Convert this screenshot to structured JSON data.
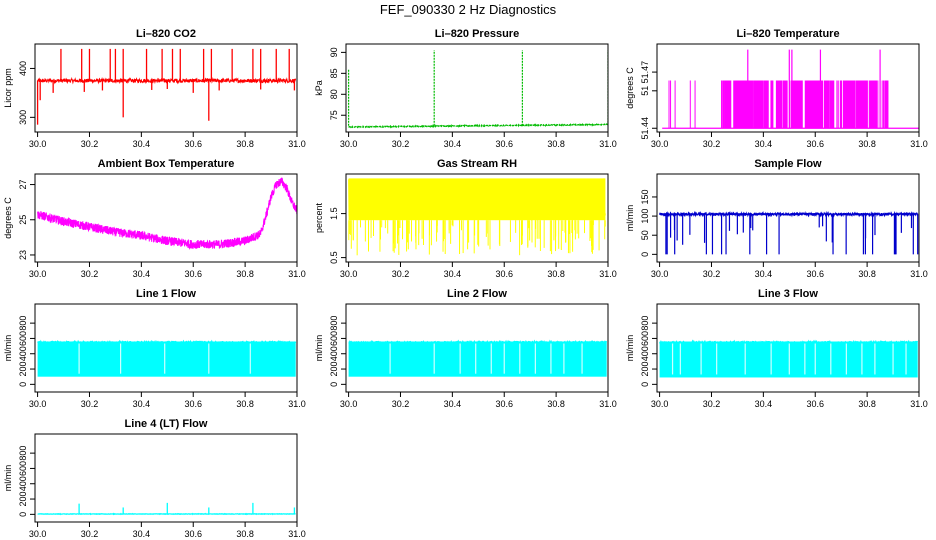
{
  "figure": {
    "title": "FEF_090330  2 Hz Diagnostics"
  },
  "chart_data": [
    {
      "type": "line",
      "title": "Li–820 CO2",
      "ylabel": "Licor ppm",
      "color": "#ff0000",
      "xlim": [
        29.99,
        31.0
      ],
      "ylim": [
        270,
        450
      ],
      "xticks": [
        30.0,
        30.2,
        30.4,
        30.6,
        30.8,
        31.0
      ],
      "xtick_labels": [
        "30.0",
        "30.2",
        "30.4",
        "30.6",
        "30.8",
        "31.0"
      ],
      "yticks": [
        300,
        400
      ],
      "ytick_labels": [
        "300",
        "400"
      ],
      "baseline": 375,
      "noise": 4,
      "spikes": [
        [
          30.09,
          440
        ],
        [
          30.17,
          440
        ],
        [
          30.2,
          440
        ],
        [
          30.28,
          440
        ],
        [
          30.3,
          440
        ],
        [
          30.33,
          440
        ],
        [
          30.42,
          440
        ],
        [
          30.48,
          440
        ],
        [
          30.52,
          440
        ],
        [
          30.55,
          440
        ],
        [
          30.64,
          440
        ],
        [
          30.67,
          440
        ],
        [
          30.75,
          440
        ],
        [
          30.83,
          440
        ],
        [
          30.86,
          440
        ],
        [
          30.92,
          440
        ],
        [
          30.97,
          440
        ],
        [
          30.0,
          285
        ],
        [
          30.33,
          300
        ],
        [
          30.66,
          293
        ],
        [
          30.01,
          335
        ],
        [
          30.06,
          350
        ],
        [
          30.18,
          352
        ],
        [
          30.25,
          355
        ],
        [
          30.44,
          356
        ],
        [
          30.5,
          358
        ],
        [
          30.6,
          350
        ],
        [
          30.7,
          355
        ],
        [
          30.86,
          357
        ],
        [
          30.99,
          355
        ]
      ]
    },
    {
      "type": "line",
      "title": "Li–820 Pressure",
      "ylabel": "kPa",
      "color": "#00bb00",
      "xlim": [
        29.99,
        31.0
      ],
      "ylim": [
        71,
        92
      ],
      "xticks": [
        30.0,
        30.2,
        30.4,
        30.6,
        30.8,
        31.0
      ],
      "xtick_labels": [
        "30.0",
        "30.2",
        "30.4",
        "30.6",
        "30.8",
        "31.0"
      ],
      "yticks": [
        75,
        80,
        85,
        90
      ],
      "ytick_labels": [
        "75",
        "80",
        "85",
        "90"
      ],
      "baseline_start": 72.2,
      "baseline_end": 72.8,
      "noise": 0.1,
      "spikes": [
        [
          30.0,
          86
        ],
        [
          30.33,
          90.5
        ],
        [
          30.67,
          90.5
        ],
        [
          31.0,
          90.5
        ]
      ]
    },
    {
      "type": "line",
      "title": "Li–820 Temperature",
      "ylabel": "degrees C",
      "color": "#ff00ff",
      "xlim": [
        29.99,
        31.0
      ],
      "ylim": [
        51.438,
        51.485
      ],
      "xticks": [
        30.0,
        30.2,
        30.4,
        30.6,
        30.8,
        31.0
      ],
      "xtick_labels": [
        "30.0",
        "30.2",
        "30.4",
        "30.6",
        "30.8",
        "31.0"
      ],
      "yticks": [
        51.44,
        51.46,
        51.47
      ],
      "ytick_labels": [
        "51.44",
        "51",
        "51.47"
      ],
      "levels": [
        51.44,
        51.4655,
        51.482
      ],
      "dense_range": [
        30.24,
        30.88
      ],
      "top_spikes": [
        30.34,
        30.5,
        30.51,
        30.62,
        30.85
      ]
    },
    {
      "type": "line",
      "title": "Ambient Box Temperature",
      "ylabel": "degrees C",
      "color": "#ff00ff",
      "xlim": [
        29.99,
        31.0
      ],
      "ylim": [
        22.6,
        27.6
      ],
      "xticks": [
        30.0,
        30.2,
        30.4,
        30.6,
        30.8,
        31.0
      ],
      "xtick_labels": [
        "30.0",
        "30.2",
        "30.4",
        "30.6",
        "30.8",
        "31.0"
      ],
      "yticks": [
        23,
        25,
        27
      ],
      "ytick_labels": [
        "23",
        "25",
        "27"
      ],
      "curve_x": [
        30.0,
        30.1,
        30.2,
        30.3,
        30.4,
        30.5,
        30.6,
        30.7,
        30.8,
        30.86,
        30.88,
        30.9,
        30.92,
        30.94,
        30.96,
        30.98,
        31.0
      ],
      "curve_y": [
        25.3,
        24.9,
        24.6,
        24.3,
        24.1,
        23.8,
        23.6,
        23.6,
        23.8,
        24.2,
        25.2,
        26.3,
        27.0,
        27.2,
        26.8,
        26.0,
        25.5
      ],
      "noise": 0.25
    },
    {
      "type": "line",
      "title": "Gas Stream RH",
      "ylabel": "percent",
      "color": "#ffff00",
      "xlim": [
        29.99,
        31.0
      ],
      "ylim": [
        0.4,
        2.4
      ],
      "xticks": [
        30.0,
        30.2,
        30.4,
        30.6,
        30.8,
        31.0
      ],
      "xtick_labels": [
        "30.0",
        "30.2",
        "30.4",
        "30.6",
        "30.8",
        "31.0"
      ],
      "yticks": [
        0.5,
        1.5
      ],
      "ytick_labels": [
        "0.5",
        "1.5"
      ],
      "band": [
        1.35,
        2.3
      ],
      "dip_min": 0.55,
      "dip_count": 120
    },
    {
      "type": "line",
      "title": "Sample Flow",
      "ylabel": "ml/min",
      "color": "#0000cc",
      "xlim": [
        29.99,
        31.0
      ],
      "ylim": [
        -20,
        210
      ],
      "xticks": [
        30.0,
        30.2,
        30.4,
        30.6,
        30.8,
        31.0
      ],
      "xtick_labels": [
        "30.0",
        "30.2",
        "30.4",
        "30.6",
        "30.8",
        "31.0"
      ],
      "yticks": [
        0,
        50,
        100,
        150
      ],
      "ytick_labels": [
        "0",
        "50",
        "100",
        "150"
      ],
      "baseline": 105,
      "noise": 3,
      "dip_min": 0,
      "dip_count": 38
    },
    {
      "type": "area",
      "title": "Line 1 Flow",
      "ylabel": "ml/min",
      "color": "#00ffff",
      "xlim": [
        29.99,
        31.0
      ],
      "ylim": [
        -100,
        1050
      ],
      "xticks": [
        30.0,
        30.2,
        30.4,
        30.6,
        30.8,
        31.0
      ],
      "xtick_labels": [
        "30.0",
        "30.2",
        "30.4",
        "30.6",
        "30.8",
        "31.0"
      ],
      "yticks": [
        0,
        200,
        400,
        600,
        800
      ],
      "ytick_labels": [
        "0",
        "200",
        "400",
        "600",
        "800"
      ],
      "band": [
        100,
        560
      ],
      "x_range": [
        30.0,
        30.995
      ],
      "gaps": [
        30.16,
        30.32,
        30.49,
        30.66,
        30.82
      ]
    },
    {
      "type": "area",
      "title": "Line 2 Flow",
      "ylabel": "ml/min",
      "color": "#00ffff",
      "xlim": [
        29.99,
        31.0
      ],
      "ylim": [
        -100,
        1050
      ],
      "xticks": [
        30.0,
        30.2,
        30.4,
        30.6,
        30.8,
        31.0
      ],
      "xtick_labels": [
        "30.0",
        "30.2",
        "30.4",
        "30.6",
        "30.8",
        "31.0"
      ],
      "yticks": [
        0,
        200,
        400,
        600,
        800
      ],
      "ytick_labels": [
        "0",
        "200",
        "400",
        "600",
        "800"
      ],
      "band": [
        100,
        560
      ],
      "x_range": [
        30.0,
        30.995
      ],
      "gaps": [
        30.16,
        30.33,
        30.43,
        30.49,
        30.55,
        30.6,
        30.66,
        30.72,
        30.78,
        30.83,
        30.9
      ]
    },
    {
      "type": "area",
      "title": "Line 3 Flow",
      "ylabel": "ml/min",
      "color": "#00ffff",
      "xlim": [
        29.99,
        31.0
      ],
      "ylim": [
        -100,
        1050
      ],
      "xticks": [
        30.0,
        30.2,
        30.4,
        30.6,
        30.8,
        31.0
      ],
      "xtick_labels": [
        "30.0",
        "30.2",
        "30.4",
        "30.6",
        "30.8",
        "31.0"
      ],
      "yticks": [
        0,
        200,
        400,
        600,
        800
      ],
      "ytick_labels": [
        "0",
        "200",
        "400",
        "600",
        "800"
      ],
      "band": [
        90,
        560
      ],
      "x_range": [
        30.0,
        30.995
      ],
      "gaps": [
        30.05,
        30.08,
        30.16,
        30.22,
        30.33,
        30.43,
        30.5,
        30.56,
        30.6,
        30.66,
        30.72,
        30.78,
        30.83,
        30.9,
        30.95
      ]
    },
    {
      "type": "line",
      "title": "Line 4 (LT) Flow",
      "ylabel": "ml/min",
      "color": "#00ffff",
      "xlim": [
        29.99,
        31.0
      ],
      "ylim": [
        -100,
        1050
      ],
      "xticks": [
        30.0,
        30.2,
        30.4,
        30.6,
        30.8,
        31.0
      ],
      "xtick_labels": [
        "30.0",
        "30.2",
        "30.4",
        "30.6",
        "30.8",
        "31.0"
      ],
      "yticks": [
        0,
        200,
        400,
        600,
        800
      ],
      "ytick_labels": [
        "0",
        "200",
        "400",
        "600",
        "800"
      ],
      "baseline": 5,
      "noise": 3,
      "spikes": [
        [
          30.16,
          140
        ],
        [
          30.33,
          90
        ],
        [
          30.5,
          150
        ],
        [
          30.66,
          90
        ],
        [
          30.83,
          150
        ],
        [
          30.99,
          90
        ]
      ]
    }
  ]
}
